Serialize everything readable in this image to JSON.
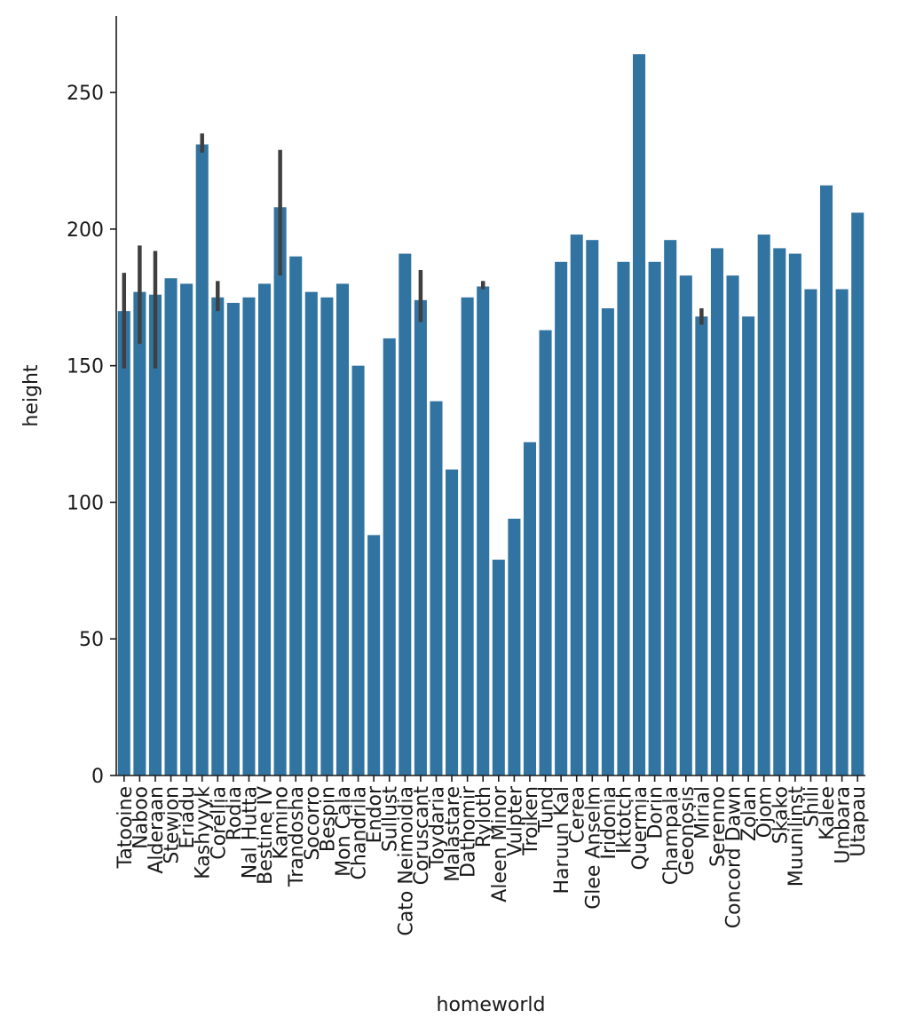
{
  "chart_data": {
    "type": "bar",
    "xlabel": "homeworld",
    "ylabel": "height",
    "ylim": [
      0,
      278
    ],
    "yticks": [
      0,
      50,
      100,
      150,
      200,
      250
    ],
    "grid": false,
    "bar_color": "#3274a1",
    "errorbar_color": "#3f3f3f",
    "categories": [
      "Tatooine",
      "Naboo",
      "Alderaan",
      "Stewjon",
      "Eriadu",
      "Kashyyyk",
      "Corellia",
      "Rodia",
      "Nal Hutta",
      "Bestine IV",
      "Kamino",
      "Trandosha",
      "Socorro",
      "Bespin",
      "Mon Cala",
      "Chandrila",
      "Endor",
      "Sullust",
      "Cato Neimoidia",
      "Coruscant",
      "Toydaria",
      "Malastare",
      "Dathomir",
      "Ryloth",
      "Aleen Minor",
      "Vulpter",
      "Troiken",
      "Tund",
      "Haruun Kal",
      "Cerea",
      "Glee Anselm",
      "Iridonia",
      "Iktotch",
      "Quermia",
      "Dorin",
      "Champala",
      "Geonosis",
      "Mirial",
      "Serenno",
      "Concord Dawn",
      "Zolan",
      "Ojom",
      "Skako",
      "Muunilinst",
      "Shili",
      "Kalee",
      "Umbara",
      "Utapau"
    ],
    "values": [
      170,
      177,
      176,
      182,
      180,
      231,
      175,
      173,
      175,
      180,
      208,
      190,
      177,
      175,
      180,
      150,
      88,
      160,
      191,
      174,
      137,
      112,
      175,
      179,
      79,
      94,
      122,
      163,
      188,
      198,
      196,
      171,
      188,
      264,
      188,
      196,
      183,
      168,
      193,
      183,
      168,
      198,
      193,
      191,
      178,
      216,
      178,
      206
    ],
    "error_bars": [
      {
        "category": "Tatooine",
        "low": 149,
        "high": 184
      },
      {
        "category": "Naboo",
        "low": 158,
        "high": 194
      },
      {
        "category": "Alderaan",
        "low": 149,
        "high": 192
      },
      {
        "category": "Kashyyyk",
        "low": 228,
        "high": 235
      },
      {
        "category": "Corellia",
        "low": 170,
        "high": 181
      },
      {
        "category": "Kamino",
        "low": 183,
        "high": 229
      },
      {
        "category": "Coruscant",
        "low": 166,
        "high": 185
      },
      {
        "category": "Ryloth",
        "low": 178,
        "high": 181
      },
      {
        "category": "Mirial",
        "low": 165,
        "high": 171
      }
    ]
  }
}
